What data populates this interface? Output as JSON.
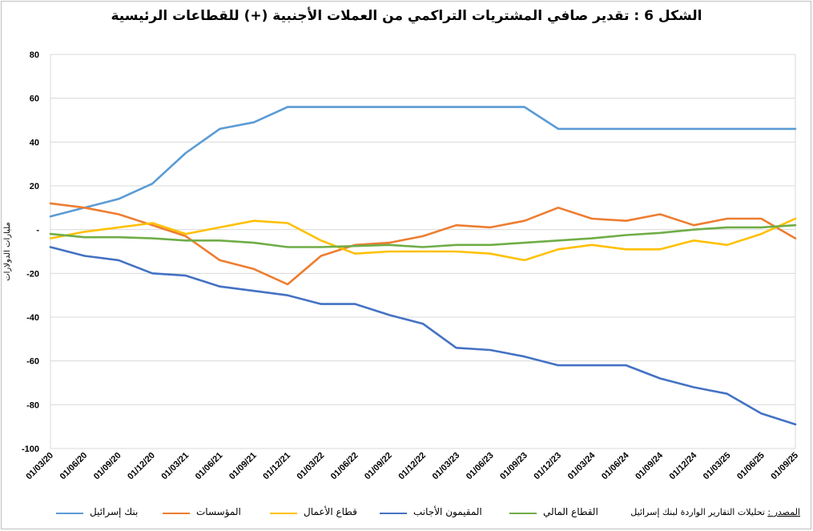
{
  "chart_data": {
    "type": "line",
    "title": "الشكل 6 : تقدير صافي المشتريات التراكمي من العملات الأجنبية (+) للقطاعات الرئيسية",
    "ylabel": "مليارات الدولارات",
    "xlabel": "",
    "ylim": [
      -100,
      80
    ],
    "yticks": [
      80,
      60,
      40,
      20,
      0,
      -20,
      -40,
      -60,
      -80,
      -100
    ],
    "ytick_labels": [
      "80",
      "60",
      "40",
      "20",
      "-",
      "-20",
      "-40",
      "-60",
      "-80",
      "-100"
    ],
    "x_tick_labels": [
      "01/03/20",
      "01/06/20",
      "01/09/20",
      "01/12/20",
      "01/03/21",
      "01/06/21",
      "01/09/21",
      "01/12/21",
      "01/03/22",
      "01/06/22",
      "01/09/22",
      "01/12/22",
      "01/03/23",
      "01/06/23",
      "01/09/23",
      "01/12/23",
      "01/03/24",
      "01/06/24",
      "01/09/24",
      "01/12/24",
      "01/03/25",
      "01/06/25",
      "01/09/25"
    ],
    "x_range": [
      "2020-03-01",
      "2025-09-01"
    ],
    "grid": "horizontal",
    "legend_position": "bottom",
    "series": [
      {
        "name": "بنك إسرائيل",
        "color": "#5b9bd5",
        "points": [
          [
            "2020-03-01",
            6
          ],
          [
            "2020-06-01",
            10
          ],
          [
            "2020-09-01",
            14
          ],
          [
            "2020-12-01",
            21
          ],
          [
            "2021-03-01",
            35
          ],
          [
            "2021-06-01",
            46
          ],
          [
            "2021-09-01",
            49
          ],
          [
            "2021-12-01",
            56
          ],
          [
            "2022-03-01",
            56
          ],
          [
            "2022-06-01",
            56
          ],
          [
            "2022-09-01",
            56
          ],
          [
            "2022-12-01",
            56
          ],
          [
            "2023-03-01",
            56
          ],
          [
            "2023-06-01",
            56
          ],
          [
            "2023-09-01",
            56
          ],
          [
            "2023-12-01",
            46
          ],
          [
            "2024-03-01",
            46
          ],
          [
            "2024-06-01",
            46
          ],
          [
            "2024-09-01",
            46
          ],
          [
            "2024-12-01",
            46
          ],
          [
            "2025-03-01",
            46
          ],
          [
            "2025-06-01",
            46
          ],
          [
            "2025-09-01",
            46
          ]
        ]
      },
      {
        "name": "المؤسسات",
        "color": "#ed7d31",
        "points": [
          [
            "2020-03-01",
            12
          ],
          [
            "2020-06-01",
            10
          ],
          [
            "2020-09-01",
            7
          ],
          [
            "2020-12-01",
            2
          ],
          [
            "2021-03-01",
            -3
          ],
          [
            "2021-06-01",
            -14
          ],
          [
            "2021-09-01",
            -18
          ],
          [
            "2021-12-01",
            -25
          ],
          [
            "2022-03-01",
            -12
          ],
          [
            "2022-06-01",
            -7
          ],
          [
            "2022-09-01",
            -6
          ],
          [
            "2022-12-01",
            -3
          ],
          [
            "2023-03-01",
            2
          ],
          [
            "2023-06-01",
            1
          ],
          [
            "2023-09-01",
            4
          ],
          [
            "2023-12-01",
            10
          ],
          [
            "2024-03-01",
            5
          ],
          [
            "2024-06-01",
            4
          ],
          [
            "2024-09-01",
            7
          ],
          [
            "2024-12-01",
            2
          ],
          [
            "2025-03-01",
            5
          ],
          [
            "2025-06-01",
            5
          ],
          [
            "2025-09-01",
            -4
          ]
        ]
      },
      {
        "name": "قطاع الأعمال",
        "color": "#ffc000",
        "points": [
          [
            "2020-03-01",
            -4
          ],
          [
            "2020-06-01",
            -1
          ],
          [
            "2020-09-01",
            1
          ],
          [
            "2020-12-01",
            3
          ],
          [
            "2021-03-01",
            -2
          ],
          [
            "2021-06-01",
            1
          ],
          [
            "2021-09-01",
            4
          ],
          [
            "2021-12-01",
            3
          ],
          [
            "2022-03-01",
            -5
          ],
          [
            "2022-06-01",
            -11
          ],
          [
            "2022-09-01",
            -10
          ],
          [
            "2022-12-01",
            -10
          ],
          [
            "2023-03-01",
            -10
          ],
          [
            "2023-06-01",
            -11
          ],
          [
            "2023-09-01",
            -14
          ],
          [
            "2023-12-01",
            -9
          ],
          [
            "2024-03-01",
            -7
          ],
          [
            "2024-06-01",
            -9
          ],
          [
            "2024-09-01",
            -9
          ],
          [
            "2024-12-01",
            -5
          ],
          [
            "2025-03-01",
            -7
          ],
          [
            "2025-06-01",
            -2
          ],
          [
            "2025-09-01",
            5
          ]
        ]
      },
      {
        "name": "المقيمون الأجانب",
        "color": "#4472c4",
        "points": [
          [
            "2020-03-01",
            -8
          ],
          [
            "2020-06-01",
            -12
          ],
          [
            "2020-09-01",
            -14
          ],
          [
            "2020-12-01",
            -20
          ],
          [
            "2021-03-01",
            -21
          ],
          [
            "2021-06-01",
            -26
          ],
          [
            "2021-09-01",
            -28
          ],
          [
            "2021-12-01",
            -30
          ],
          [
            "2022-03-01",
            -34
          ],
          [
            "2022-06-01",
            -34
          ],
          [
            "2022-09-01",
            -39
          ],
          [
            "2022-12-01",
            -43
          ],
          [
            "2023-03-01",
            -54
          ],
          [
            "2023-06-01",
            -55
          ],
          [
            "2023-09-01",
            -58
          ],
          [
            "2023-12-01",
            -62
          ],
          [
            "2024-03-01",
            -62
          ],
          [
            "2024-06-01",
            -62
          ],
          [
            "2024-09-01",
            -68
          ],
          [
            "2024-12-01",
            -72
          ],
          [
            "2025-03-01",
            -75
          ],
          [
            "2025-06-01",
            -84
          ],
          [
            "2025-09-01",
            -89
          ]
        ]
      },
      {
        "name": "القطاع المالي",
        "color": "#70ad47",
        "points": [
          [
            "2020-03-01",
            -2
          ],
          [
            "2020-06-01",
            -3.5
          ],
          [
            "2020-09-01",
            -3.5
          ],
          [
            "2020-12-01",
            -4
          ],
          [
            "2021-03-01",
            -5
          ],
          [
            "2021-06-01",
            -5
          ],
          [
            "2021-09-01",
            -6
          ],
          [
            "2021-12-01",
            -8
          ],
          [
            "2022-03-01",
            -8
          ],
          [
            "2022-06-01",
            -7.5
          ],
          [
            "2022-09-01",
            -7
          ],
          [
            "2022-12-01",
            -8
          ],
          [
            "2023-03-01",
            -7
          ],
          [
            "2023-06-01",
            -7
          ],
          [
            "2023-09-01",
            -6
          ],
          [
            "2023-12-01",
            -5
          ],
          [
            "2024-03-01",
            -4
          ],
          [
            "2024-06-01",
            -2.5
          ],
          [
            "2024-09-01",
            -1.5
          ],
          [
            "2024-12-01",
            0
          ],
          [
            "2025-03-01",
            1
          ],
          [
            "2025-06-01",
            1
          ],
          [
            "2025-09-01",
            2
          ]
        ]
      }
    ],
    "source_label": "المصدر :",
    "source_text": "تحليلات التقارير الواردة  لبنك إسرائيل"
  }
}
